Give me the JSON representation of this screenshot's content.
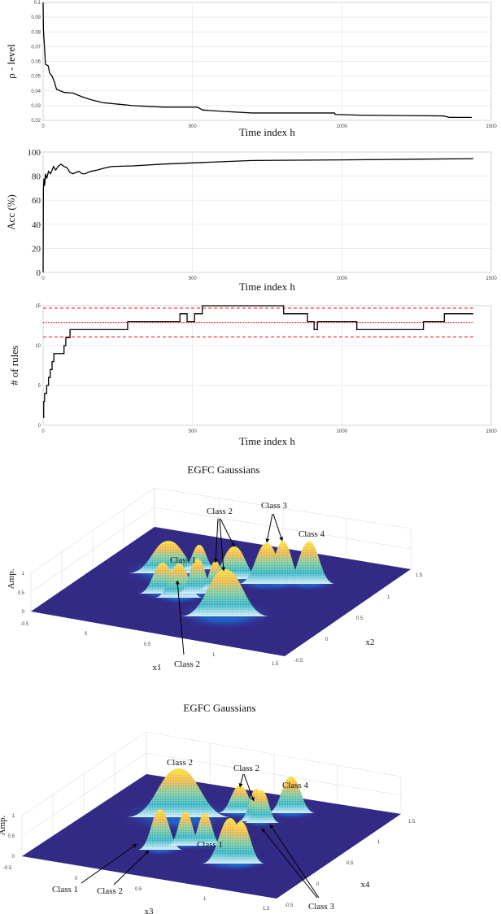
{
  "chart_data": [
    {
      "type": "line",
      "id": "rho",
      "title": "",
      "xlabel": "Time index h",
      "ylabel": "ρ - level",
      "xlim": [
        0,
        1500
      ],
      "ylim": [
        0.02,
        0.1
      ],
      "xticks": [
        0,
        500,
        1000,
        1500
      ],
      "yticks": [
        0.02,
        0.03,
        0.04,
        0.05,
        0.06,
        0.07,
        0.08,
        0.09,
        0.1
      ],
      "ytick_labels": [
        "0.02",
        "0.03",
        "0.04",
        "0.05",
        "0.06",
        "0.07",
        "0.08",
        "0.09",
        "0.1"
      ],
      "grid": true,
      "series": [
        {
          "name": "rho-level",
          "color": "#000000",
          "x": [
            0,
            1,
            8,
            17,
            22,
            30,
            38,
            45,
            70,
            100,
            130,
            160,
            200,
            250,
            300,
            400,
            515,
            535,
            610,
            700,
            975,
            978,
            1060,
            1340,
            1360,
            1435
          ],
          "y": [
            0.1,
            0.082,
            0.058,
            0.057,
            0.052,
            0.05,
            0.046,
            0.041,
            0.039,
            0.0385,
            0.036,
            0.034,
            0.032,
            0.031,
            0.03,
            0.029,
            0.029,
            0.027,
            0.026,
            0.025,
            0.025,
            0.024,
            0.0235,
            0.023,
            0.022,
            0.022
          ]
        }
      ]
    },
    {
      "type": "line",
      "id": "acc",
      "title": "",
      "xlabel": "Time index h",
      "ylabel": "Acc (%)",
      "xlim": [
        0,
        1500
      ],
      "ylim": [
        0,
        100
      ],
      "xticks": [
        0,
        500,
        1000,
        1500
      ],
      "yticks": [
        0,
        20,
        40,
        60,
        80,
        100
      ],
      "ytick_labels": [
        "0",
        "20",
        "40",
        "60",
        "80",
        "100"
      ],
      "grid": true,
      "series": [
        {
          "name": "accuracy",
          "color": "#000000",
          "x": [
            0,
            1,
            3,
            5,
            8,
            12,
            18,
            25,
            30,
            35,
            42,
            50,
            60,
            70,
            80,
            90,
            100,
            110,
            120,
            130,
            140,
            160,
            180,
            210,
            230,
            300,
            400,
            500,
            700,
            1000,
            1440
          ],
          "y": [
            0,
            70,
            78,
            72,
            82,
            78,
            84,
            82,
            85,
            88,
            85,
            88,
            90,
            88,
            87,
            83,
            82,
            83,
            84,
            82,
            82,
            84,
            85,
            87,
            88,
            88.5,
            90,
            91,
            93,
            93.5,
            94.5
          ]
        }
      ]
    },
    {
      "type": "line",
      "id": "rules",
      "title": "",
      "xlabel": "Time index h",
      "ylabel": "# of rules",
      "xlim": [
        0,
        1500
      ],
      "ylim": [
        0,
        15
      ],
      "xticks": [
        0,
        500,
        1000,
        1500
      ],
      "yticks": [
        0,
        5,
        10,
        15
      ],
      "ytick_labels": [
        "0",
        "5",
        "10",
        "15"
      ],
      "grid": true,
      "series": [
        {
          "name": "number of rules",
          "color": "#000000",
          "step": true,
          "x": [
            0,
            2,
            5,
            12,
            18,
            24,
            30,
            36,
            70,
            76,
            90,
            283,
            458,
            482,
            507,
            533,
            805,
            885,
            907,
            918,
            1050,
            1273,
            1343,
            1440
          ],
          "y": [
            1,
            3,
            4,
            5,
            6,
            7,
            8,
            9,
            10,
            11,
            12,
            13,
            14,
            13,
            14,
            15,
            14,
            13,
            12,
            13,
            12,
            13,
            14,
            14
          ]
        },
        {
          "name": "mean",
          "color": "#ff0000",
          "style": "dotted",
          "x": [
            0,
            1440
          ],
          "y": [
            12.9,
            12.9
          ]
        },
        {
          "name": "mean + std",
          "color": "#ff0000",
          "style": "dashed",
          "x": [
            0,
            1440
          ],
          "y": [
            14.7,
            14.7
          ]
        },
        {
          "name": "mean - std",
          "color": "#ff0000",
          "style": "dashed",
          "x": [
            0,
            1440
          ],
          "y": [
            11.1,
            11.1
          ]
        }
      ]
    },
    {
      "type": "surface",
      "id": "gauss12",
      "title": "EGFC Gaussians",
      "xlabel": "x1",
      "ylabel": "x2",
      "zlabel": "Amp.",
      "xticks": [
        "-0.5",
        "0",
        "0.5",
        "1",
        "1.5"
      ],
      "yticks": [
        "-0.5",
        "0",
        "0.5",
        "1",
        "1.5"
      ],
      "zticks": [
        "0",
        "0.5",
        "1"
      ],
      "annotations": [
        "Class 2",
        "Class 3",
        "Class 4",
        "Class 1",
        "Class 2"
      ]
    },
    {
      "type": "surface",
      "id": "gauss34",
      "title": "EGFC Gaussians",
      "xlabel": "x3",
      "ylabel": "x4",
      "zlabel": "Amp.",
      "xticks": [
        "-0.5",
        "0",
        "0.5",
        "1",
        "1.5"
      ],
      "yticks": [
        "-0.5",
        "0",
        "0.5",
        "1",
        "1.5"
      ],
      "zticks": [
        "0",
        "0.5",
        "1"
      ],
      "annotations": [
        "Class 2",
        "Class 2",
        "Class 4",
        "Class 1",
        "Class 1",
        "Class 2",
        "Class 3"
      ]
    }
  ]
}
